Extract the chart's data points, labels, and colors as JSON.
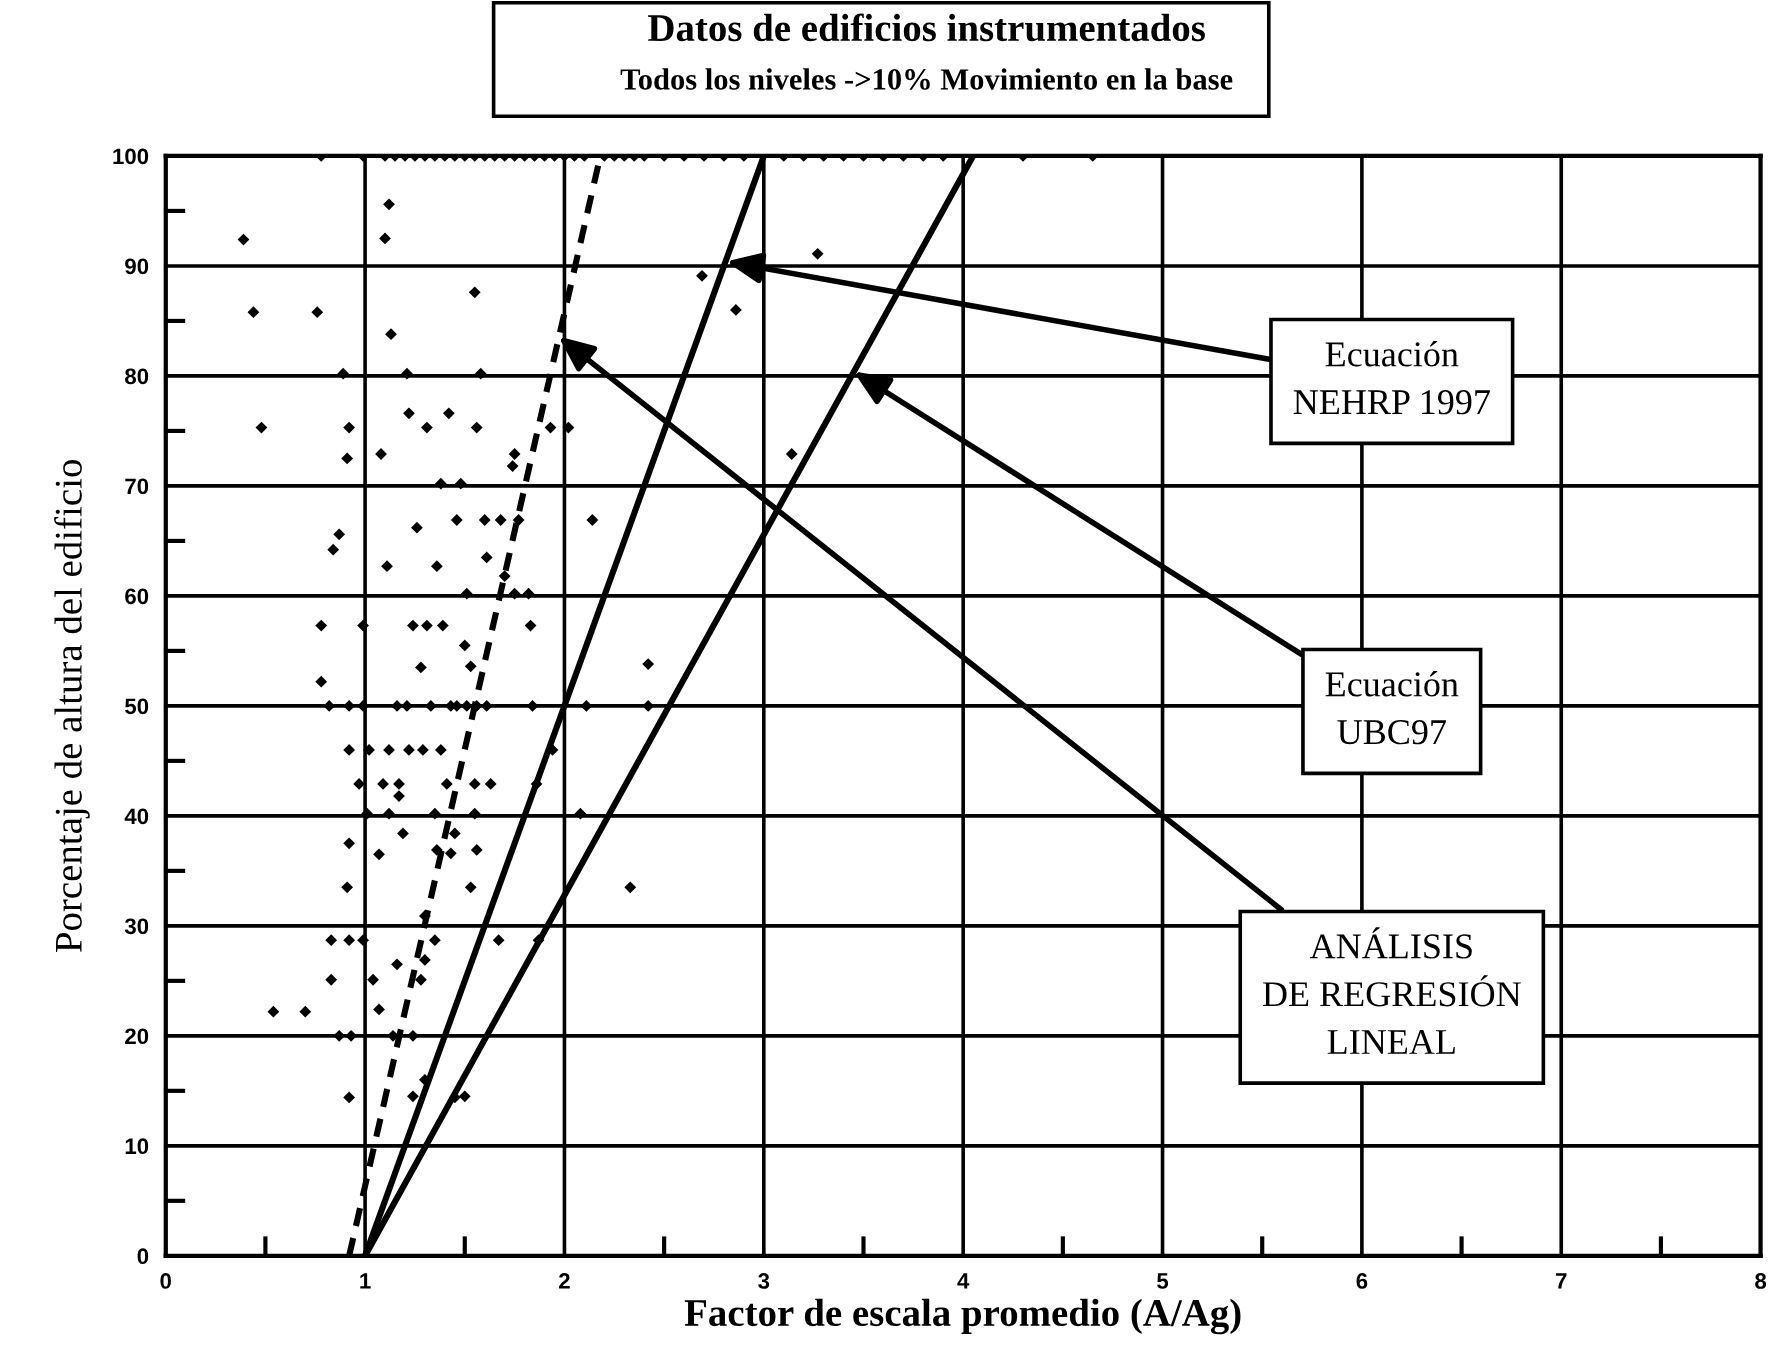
{
  "chart_data": {
    "type": "scatter",
    "title": "Datos de edificios instrumentados",
    "subtitle": "Todos los niveles ->10% Movimiento en la base",
    "xlabel": "Factor de escala promedio (A/Ag)",
    "ylabel": "Porcentaje de altura del edificio",
    "xlim": [
      0,
      8
    ],
    "ylim": [
      0,
      100
    ],
    "xticks": [
      0,
      {
        "value": 0.5,
        "label": null
      },
      1,
      {
        "value": 1.5,
        "label": null
      },
      2,
      {
        "value": 2.5,
        "label": null
      },
      3,
      {
        "value": 3.5,
        "label": null
      },
      4,
      {
        "value": 4.5,
        "label": null
      },
      5,
      {
        "value": 5.5,
        "label": null
      },
      6,
      {
        "value": 6.5,
        "label": null
      },
      7,
      {
        "value": 7.5,
        "label": null
      },
      8
    ],
    "yticks": [
      0,
      {
        "value": 5,
        "label": null
      },
      10,
      {
        "value": 15,
        "label": null
      },
      20,
      {
        "value": 25,
        "label": null
      },
      30,
      {
        "value": 35,
        "label": null
      },
      40,
      {
        "value": 45,
        "label": null
      },
      50,
      {
        "value": 55,
        "label": null
      },
      60,
      {
        "value": 65,
        "label": null
      },
      70,
      {
        "value": 75,
        "label": null
      },
      80,
      {
        "value": 85,
        "label": null
      },
      90,
      {
        "value": 95,
        "label": null
      },
      100
    ],
    "grid": true,
    "marker": "diamond",
    "series": [
      {
        "color": "#000000",
        "x": [
          0.78,
          0.99,
          1.1,
          1.15,
          1.2,
          1.25,
          1.3,
          1.35,
          1.4,
          1.45,
          1.5,
          1.55,
          1.6,
          1.65,
          1.7,
          1.75,
          1.8,
          1.85,
          1.9,
          1.95,
          2.0,
          2.05,
          2.1,
          2.2,
          2.25,
          2.3,
          2.35,
          2.4,
          2.5,
          2.6,
          2.7,
          2.8,
          2.9,
          3.1,
          3.2,
          3.3,
          3.4,
          3.5,
          3.6,
          3.7,
          3.8,
          3.9,
          4.3,
          4.65,
          0.39,
          1.12,
          1.1,
          0.44,
          0.76,
          1.55,
          1.13,
          2.69,
          2.86,
          3.27,
          0.89,
          1.21,
          1.58,
          0.48,
          0.92,
          0.91,
          1.08,
          1.22,
          1.31,
          1.42,
          1.56,
          1.93,
          2.02,
          1.75,
          1.74,
          3.14,
          1.38,
          1.48,
          0.87,
          0.84,
          1.26,
          1.46,
          1.6,
          1.68,
          1.77,
          2.14,
          1.11,
          1.36,
          1.61,
          1.7,
          1.75,
          1.82,
          1.51,
          0.78,
          0.99,
          1.24,
          1.31,
          1.39,
          1.83,
          1.5,
          1.28,
          2.42,
          1.53,
          0.78,
          0.82,
          0.92,
          0.99,
          1.16,
          1.21,
          1.33,
          1.43,
          1.46,
          1.51,
          1.56,
          1.61,
          1.84,
          2.11,
          2.42,
          0.92,
          1.02,
          1.12,
          1.22,
          1.29,
          1.38,
          1.94,
          0.97,
          1.09,
          1.17,
          1.41,
          1.55,
          1.63,
          1.86,
          1.17,
          1.01,
          1.12,
          1.35,
          1.55,
          2.08,
          0.92,
          1.07,
          1.19,
          1.36,
          1.43,
          1.56,
          1.45,
          0.91,
          1.53,
          2.33,
          1.3,
          0.83,
          0.92,
          0.99,
          1.35,
          1.67,
          1.87,
          1.16,
          1.3,
          0.83,
          1.04,
          1.28,
          0.54,
          0.7,
          1.07,
          0.87,
          0.93,
          1.14,
          1.24,
          0.92,
          1.24,
          1.3,
          1.45,
          1.5
        ],
        "values": [
          100,
          100,
          100,
          100,
          100,
          100,
          100,
          100,
          100,
          100,
          100,
          100,
          100,
          100,
          100,
          100,
          100,
          100,
          100,
          100,
          100,
          100,
          100,
          100,
          100,
          100,
          100,
          100,
          100,
          100,
          100,
          100,
          100,
          100,
          100,
          100,
          100,
          100,
          100,
          100,
          100,
          100,
          100,
          100,
          92.4,
          95.6,
          92.5,
          85.8,
          85.8,
          87.6,
          83.8,
          89.1,
          86.0,
          91.1,
          80.2,
          80.2,
          80.2,
          75.3,
          75.3,
          72.5,
          72.9,
          76.6,
          75.3,
          76.6,
          75.3,
          75.3,
          75.3,
          72.9,
          71.8,
          72.9,
          70.2,
          70.2,
          65.6,
          64.2,
          66.2,
          66.9,
          66.9,
          66.9,
          66.9,
          66.9,
          62.7,
          62.7,
          63.5,
          61.8,
          60.2,
          60.2,
          60.2,
          57.3,
          57.3,
          57.3,
          57.3,
          57.3,
          57.3,
          55.5,
          53.5,
          53.8,
          53.6,
          52.2,
          50,
          50,
          50,
          50,
          50,
          50,
          50,
          50,
          50,
          50,
          50,
          50,
          50,
          50,
          46,
          46,
          46,
          46,
          46,
          46,
          46,
          42.9,
          42.9,
          42.9,
          42.9,
          42.9,
          42.9,
          42.9,
          41.8,
          40.2,
          40.2,
          40.2,
          40.2,
          40.2,
          37.5,
          36.5,
          38.4,
          36.9,
          36.6,
          36.9,
          38.4,
          33.5,
          33.5,
          33.5,
          30.9,
          28.7,
          28.7,
          28.7,
          28.7,
          28.7,
          28.7,
          26.5,
          26.9,
          25.1,
          25.1,
          25.1,
          22.2,
          22.2,
          22.4,
          20,
          20,
          20,
          20,
          14.4,
          14.5,
          16.0,
          14.4,
          14.5
        ]
      },
      {
        "type": "line",
        "color": "#000000",
        "line_style": "solid",
        "marker": "none",
        "x": [
          1,
          3
        ],
        "values": [
          0,
          100
        ]
      },
      {
        "type": "line",
        "color": "#000000",
        "line_style": "solid",
        "marker": "none",
        "x": [
          1,
          4.05
        ],
        "values": [
          0,
          100
        ]
      },
      {
        "type": "line",
        "color": "#000000",
        "line_style": "dashed",
        "marker": "none",
        "x": [
          0.92,
          2.18
        ],
        "values": [
          0,
          100
        ]
      }
    ],
    "annotations": [
      {
        "text": "Ecuación\nNEHRP 1997",
        "x": 2.81,
        "y": 90.4
      },
      {
        "text": "Ecuación\nUBC97",
        "x": 3.45,
        "y": 80.4
      },
      {
        "text": "ANÁLISIS\nDE REGRESIÓN\nLINEAL",
        "x": 1.97,
        "y": 83.6
      }
    ]
  }
}
